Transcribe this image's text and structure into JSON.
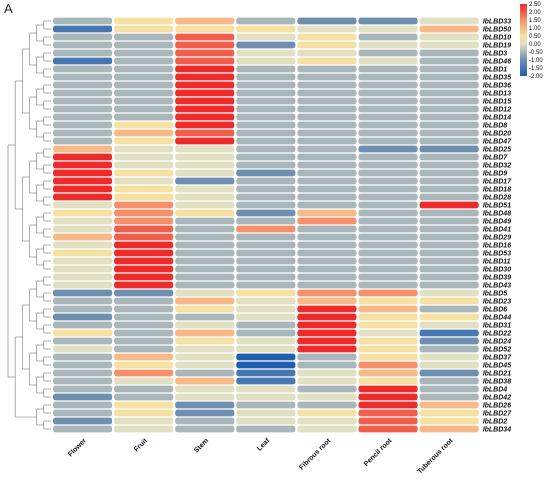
{
  "panel_label": "A",
  "chart_data": {
    "type": "heatmap",
    "title": "",
    "xlabel": "",
    "ylabel": "",
    "x": [
      "Flower",
      "Fruit",
      "Stem",
      "Leaf",
      "Fibrous root",
      "Pencil root",
      "Tuberous root"
    ],
    "y": [
      "IbLBD33",
      "IbLBD50",
      "IbLBD10",
      "IbLBD19",
      "IbLBD3",
      "IbLBD46",
      "IbLBD1",
      "IbLBD35",
      "IbLBD36",
      "IbLBD13",
      "IbLBD15",
      "IbLBD12",
      "IbLBD14",
      "IbLBD8",
      "IbLBD20",
      "IbLBD47",
      "IbLBD25",
      "IbLBD7",
      "IbLBD32",
      "IbLBD9",
      "IbLBD17",
      "IbLBD18",
      "IbLBD28",
      "IbLBD51",
      "IbLBD48",
      "IbLBD49",
      "IbLBD41",
      "IbLBD29",
      "IbLBD16",
      "IbLBD53",
      "IbLBD11",
      "IbLBD30",
      "IbLBD39",
      "IbLBD43",
      "IbLBD5",
      "IbLBD23",
      "IbLBD6",
      "IbLBD44",
      "IbLBD31",
      "IbLBD22",
      "IbLBD24",
      "IbLBD52",
      "IbLBD37",
      "IbLBD45",
      "IbLBD21",
      "IbLBD38",
      "IbLBD4",
      "IbLBD42",
      "IbLBD26",
      "IbLBD27",
      "IbLBD2",
      "IbLBD34"
    ],
    "values": [
      [
        -0.5,
        0.5,
        1.0,
        -0.5,
        -1.0,
        -1.0,
        0.0
      ],
      [
        -1.5,
        0.5,
        0.5,
        0.5,
        0.0,
        0.0,
        1.0
      ],
      [
        -0.5,
        -0.5,
        2.0,
        0.0,
        0.5,
        -0.5,
        0.0
      ],
      [
        -0.5,
        -0.5,
        2.0,
        -1.0,
        0.5,
        0.0,
        0.0
      ],
      [
        -0.5,
        -0.5,
        2.0,
        0.0,
        0.0,
        -0.5,
        -0.5
      ],
      [
        -1.5,
        -0.5,
        2.0,
        0.0,
        0.5,
        0.0,
        -0.5
      ],
      [
        -0.5,
        -0.5,
        2.5,
        -0.5,
        -0.5,
        -0.5,
        -0.5
      ],
      [
        -0.5,
        -0.5,
        2.5,
        -0.5,
        -0.5,
        -0.5,
        -0.5
      ],
      [
        -0.5,
        -0.5,
        2.5,
        -0.5,
        -0.5,
        -0.5,
        -0.5
      ],
      [
        -0.5,
        -0.5,
        2.5,
        -0.5,
        -0.5,
        -0.5,
        -0.5
      ],
      [
        -0.5,
        -0.5,
        2.5,
        -0.5,
        -0.5,
        -0.5,
        -0.5
      ],
      [
        -0.5,
        -0.5,
        2.5,
        -0.5,
        -0.5,
        -0.5,
        -0.5
      ],
      [
        -0.5,
        -0.5,
        2.5,
        -0.5,
        -0.5,
        -0.5,
        -0.5
      ],
      [
        -0.5,
        0.5,
        2.5,
        -0.5,
        -0.5,
        -0.5,
        -0.5
      ],
      [
        -0.5,
        1.0,
        2.0,
        -0.5,
        -0.5,
        -0.5,
        -0.5
      ],
      [
        -0.5,
        0.5,
        2.5,
        -0.5,
        -0.5,
        -0.5,
        -0.5
      ],
      [
        1.0,
        0.0,
        0.0,
        -0.5,
        -0.5,
        -1.0,
        -1.0
      ],
      [
        2.5,
        0.0,
        0.0,
        -0.5,
        -0.5,
        -0.5,
        -0.5
      ],
      [
        2.5,
        0.0,
        0.0,
        -0.5,
        -0.5,
        -0.5,
        -0.5
      ],
      [
        2.5,
        0.5,
        0.0,
        -1.0,
        -0.5,
        -0.5,
        -0.5
      ],
      [
        2.5,
        0.0,
        -1.0,
        -0.5,
        -0.5,
        -0.5,
        -0.5
      ],
      [
        2.5,
        0.5,
        0.0,
        -0.5,
        -0.5,
        -0.5,
        -0.5
      ],
      [
        2.5,
        0.5,
        0.0,
        -0.5,
        -0.5,
        -0.5,
        -0.5
      ],
      [
        0.0,
        1.5,
        0.0,
        -0.5,
        -0.5,
        -0.5,
        2.5
      ],
      [
        0.5,
        1.5,
        0.5,
        -1.0,
        1.0,
        -0.5,
        -0.5
      ],
      [
        0.0,
        1.5,
        -0.5,
        -0.5,
        1.5,
        -0.5,
        -0.5
      ],
      [
        0.0,
        2.0,
        -0.5,
        1.5,
        -0.5,
        -0.5,
        -0.5
      ],
      [
        1.0,
        2.0,
        -0.5,
        -0.5,
        -0.5,
        -0.5,
        -0.5
      ],
      [
        0.0,
        2.5,
        -0.5,
        -0.5,
        -0.5,
        -0.5,
        -0.5
      ],
      [
        0.5,
        2.5,
        -0.5,
        -0.5,
        -0.5,
        -0.5,
        -0.5
      ],
      [
        0.0,
        2.5,
        -0.5,
        -0.5,
        -0.5,
        -0.5,
        -0.5
      ],
      [
        0.0,
        2.5,
        -0.5,
        -0.5,
        -0.5,
        -0.5,
        -0.5
      ],
      [
        0.0,
        2.5,
        -0.5,
        -0.5,
        -0.5,
        -0.5,
        -0.5
      ],
      [
        0.0,
        2.5,
        -0.5,
        -0.5,
        -0.5,
        -0.5,
        -0.5
      ],
      [
        -1.0,
        -1.0,
        0.0,
        0.5,
        1.5,
        1.5,
        0.0
      ],
      [
        -0.5,
        -0.5,
        1.0,
        0.0,
        1.0,
        0.5,
        0.5
      ],
      [
        -0.5,
        -0.5,
        0.5,
        0.0,
        2.5,
        1.0,
        -0.5
      ],
      [
        -1.0,
        -0.5,
        -0.5,
        0.0,
        2.5,
        0.5,
        0.5
      ],
      [
        -0.5,
        -0.5,
        0.0,
        -0.5,
        2.5,
        0.5,
        0.0
      ],
      [
        0.5,
        -0.5,
        1.0,
        -0.5,
        2.5,
        0.0,
        -1.5
      ],
      [
        -0.5,
        -0.5,
        0.5,
        0.0,
        2.5,
        0.5,
        -1.0
      ],
      [
        0.0,
        -0.5,
        0.0,
        0.0,
        2.5,
        0.5,
        -0.5
      ],
      [
        -0.5,
        1.0,
        0.0,
        -2.0,
        -0.5,
        0.5,
        0.0
      ],
      [
        -0.5,
        0.5,
        0.0,
        -2.0,
        -0.5,
        1.5,
        0.0
      ],
      [
        -0.5,
        1.5,
        -0.5,
        -1.5,
        0.0,
        1.0,
        -1.0
      ],
      [
        -0.5,
        0.0,
        1.0,
        -1.5,
        0.0,
        0.5,
        -0.5
      ],
      [
        -0.5,
        -0.5,
        0.0,
        0.0,
        -0.5,
        2.5,
        -0.5
      ],
      [
        -1.0,
        -0.5,
        0.0,
        0.0,
        0.0,
        2.5,
        -0.5
      ],
      [
        -0.5,
        0.5,
        -1.0,
        -0.5,
        -0.5,
        2.5,
        1.0
      ],
      [
        -0.5,
        0.5,
        -1.0,
        0.0,
        0.5,
        2.0,
        0.5
      ],
      [
        -1.0,
        0.0,
        -0.5,
        0.0,
        0.0,
        2.0,
        0.5
      ],
      [
        -0.5,
        0.0,
        -0.5,
        -0.5,
        0.0,
        2.0,
        1.0
      ]
    ],
    "colorscale": {
      "min": -2.0,
      "max": 2.5,
      "stops": [
        {
          "value": -2.0,
          "color": "#1f5fae"
        },
        {
          "value": -1.0,
          "color": "#6f8fb0"
        },
        {
          "value": -0.5,
          "color": "#a9b7bb"
        },
        {
          "value": 0.0,
          "color": "#e2e0c2"
        },
        {
          "value": 0.5,
          "color": "#f6e1a4"
        },
        {
          "value": 1.5,
          "color": "#f6906a"
        },
        {
          "value": 2.5,
          "color": "#ee2b2b"
        }
      ]
    },
    "legend": {
      "position": "top-right",
      "ticks": [
        "2.50",
        "2.00",
        "1.50",
        "1.00",
        "0.50",
        "0.00",
        "-0.50",
        "-1.00",
        "-1.50",
        "-2.00"
      ]
    }
  }
}
